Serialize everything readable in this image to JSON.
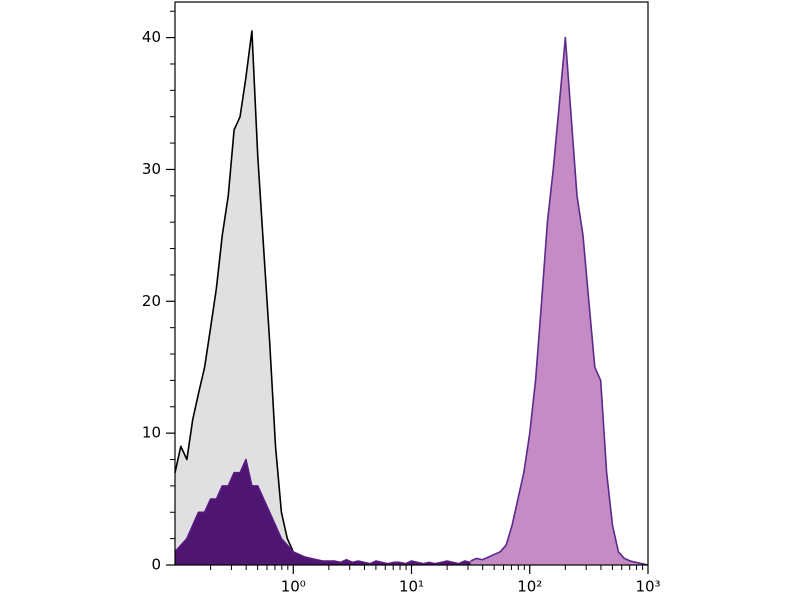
{
  "chart_data": {
    "type": "area",
    "xscale": "log",
    "xlim": [
      0.1,
      1000
    ],
    "xticks": [
      {
        "value": 1,
        "label": "10⁰"
      },
      {
        "value": 10,
        "label": "10¹"
      },
      {
        "value": 100,
        "label": "10²"
      },
      {
        "value": 1000,
        "label": "10³"
      }
    ],
    "xminorticks": [
      0.2,
      0.3,
      0.4,
      0.5,
      0.6,
      0.7,
      0.8,
      0.9,
      2,
      3,
      4,
      5,
      6,
      7,
      8,
      9,
      20,
      30,
      40,
      50,
      60,
      70,
      80,
      90,
      200,
      300,
      400,
      500,
      600,
      700,
      800,
      900
    ],
    "ylim": [
      0,
      42.7
    ],
    "yticks": [
      0,
      10,
      20,
      30,
      40
    ],
    "yminorticks": [
      2,
      4,
      6,
      8,
      12,
      14,
      16,
      18,
      22,
      24,
      26,
      28,
      32,
      34,
      36,
      38,
      42
    ],
    "series": [
      {
        "color": "#000000",
        "fill": "#e0e0e0",
        "x": [
          0.1,
          0.112,
          0.126,
          0.141,
          0.158,
          0.178,
          0.2,
          0.224,
          0.251,
          0.282,
          0.316,
          0.355,
          0.398,
          0.447,
          0.501,
          0.562,
          0.631,
          0.708,
          0.794,
          0.891,
          1,
          1.12,
          1.26,
          1.41,
          1.58
        ],
        "values": [
          7,
          9,
          8,
          11,
          13,
          15,
          18,
          21,
          25,
          28,
          33,
          34,
          37,
          40.5,
          31,
          24,
          17,
          9,
          4,
          2,
          1,
          0.5,
          0.3,
          0.2,
          0.1
        ]
      },
      {
        "color": "#5a1a84",
        "fill": "#4e1670",
        "x": [
          0.1,
          0.112,
          0.126,
          0.141,
          0.158,
          0.178,
          0.2,
          0.224,
          0.251,
          0.282,
          0.316,
          0.355,
          0.398,
          0.447,
          0.501,
          0.562,
          0.631,
          0.708,
          0.794,
          0.891,
          1,
          1.12,
          1.26,
          1.41,
          1.58,
          1.78,
          2,
          2.24,
          2.51,
          2.82,
          3.16,
          3.55,
          3.98,
          4.47,
          5.01,
          5.62,
          6.31,
          7.08,
          7.94,
          8.91,
          10,
          11.2,
          12.6,
          14.1,
          15.8,
          17.8,
          20,
          22.4,
          25.1,
          28.2,
          31.6,
          35.5,
          39.8,
          44.7,
          50.1
        ],
        "values": [
          1,
          1.5,
          2,
          3,
          4,
          4,
          5,
          5,
          6,
          6,
          7,
          7,
          8,
          6,
          6,
          5,
          4,
          3,
          2,
          1.5,
          1,
          0.8,
          0.6,
          0.5,
          0.4,
          0.3,
          0.3,
          0.3,
          0.2,
          0.4,
          0.2,
          0.3,
          0.2,
          0.1,
          0.3,
          0.2,
          0.1,
          0.2,
          0.2,
          0.1,
          0.3,
          0.2,
          0.1,
          0.2,
          0.1,
          0.2,
          0.3,
          0.2,
          0.1,
          0.3,
          0.2,
          0.4,
          0.3,
          0.5,
          0.8
        ]
      },
      {
        "color": "#5b2a8c",
        "fill": "#c48bc4",
        "x": [
          31.6,
          35.5,
          39.8,
          44.7,
          50.1,
          56.2,
          63.1,
          70.8,
          79.4,
          89.1,
          100,
          112,
          126,
          141,
          158,
          178,
          200,
          224,
          251,
          282,
          316,
          355,
          398,
          447,
          501,
          562,
          631,
          708,
          794,
          891,
          1000
        ],
        "values": [
          0.3,
          0.5,
          0.4,
          0.6,
          0.8,
          1,
          1.5,
          3,
          5,
          7,
          10,
          14,
          20,
          26,
          30,
          35,
          40,
          34,
          28,
          25,
          20,
          15,
          14,
          7,
          3,
          1,
          0.5,
          0.3,
          0.2,
          0.1,
          0
        ]
      }
    ]
  }
}
